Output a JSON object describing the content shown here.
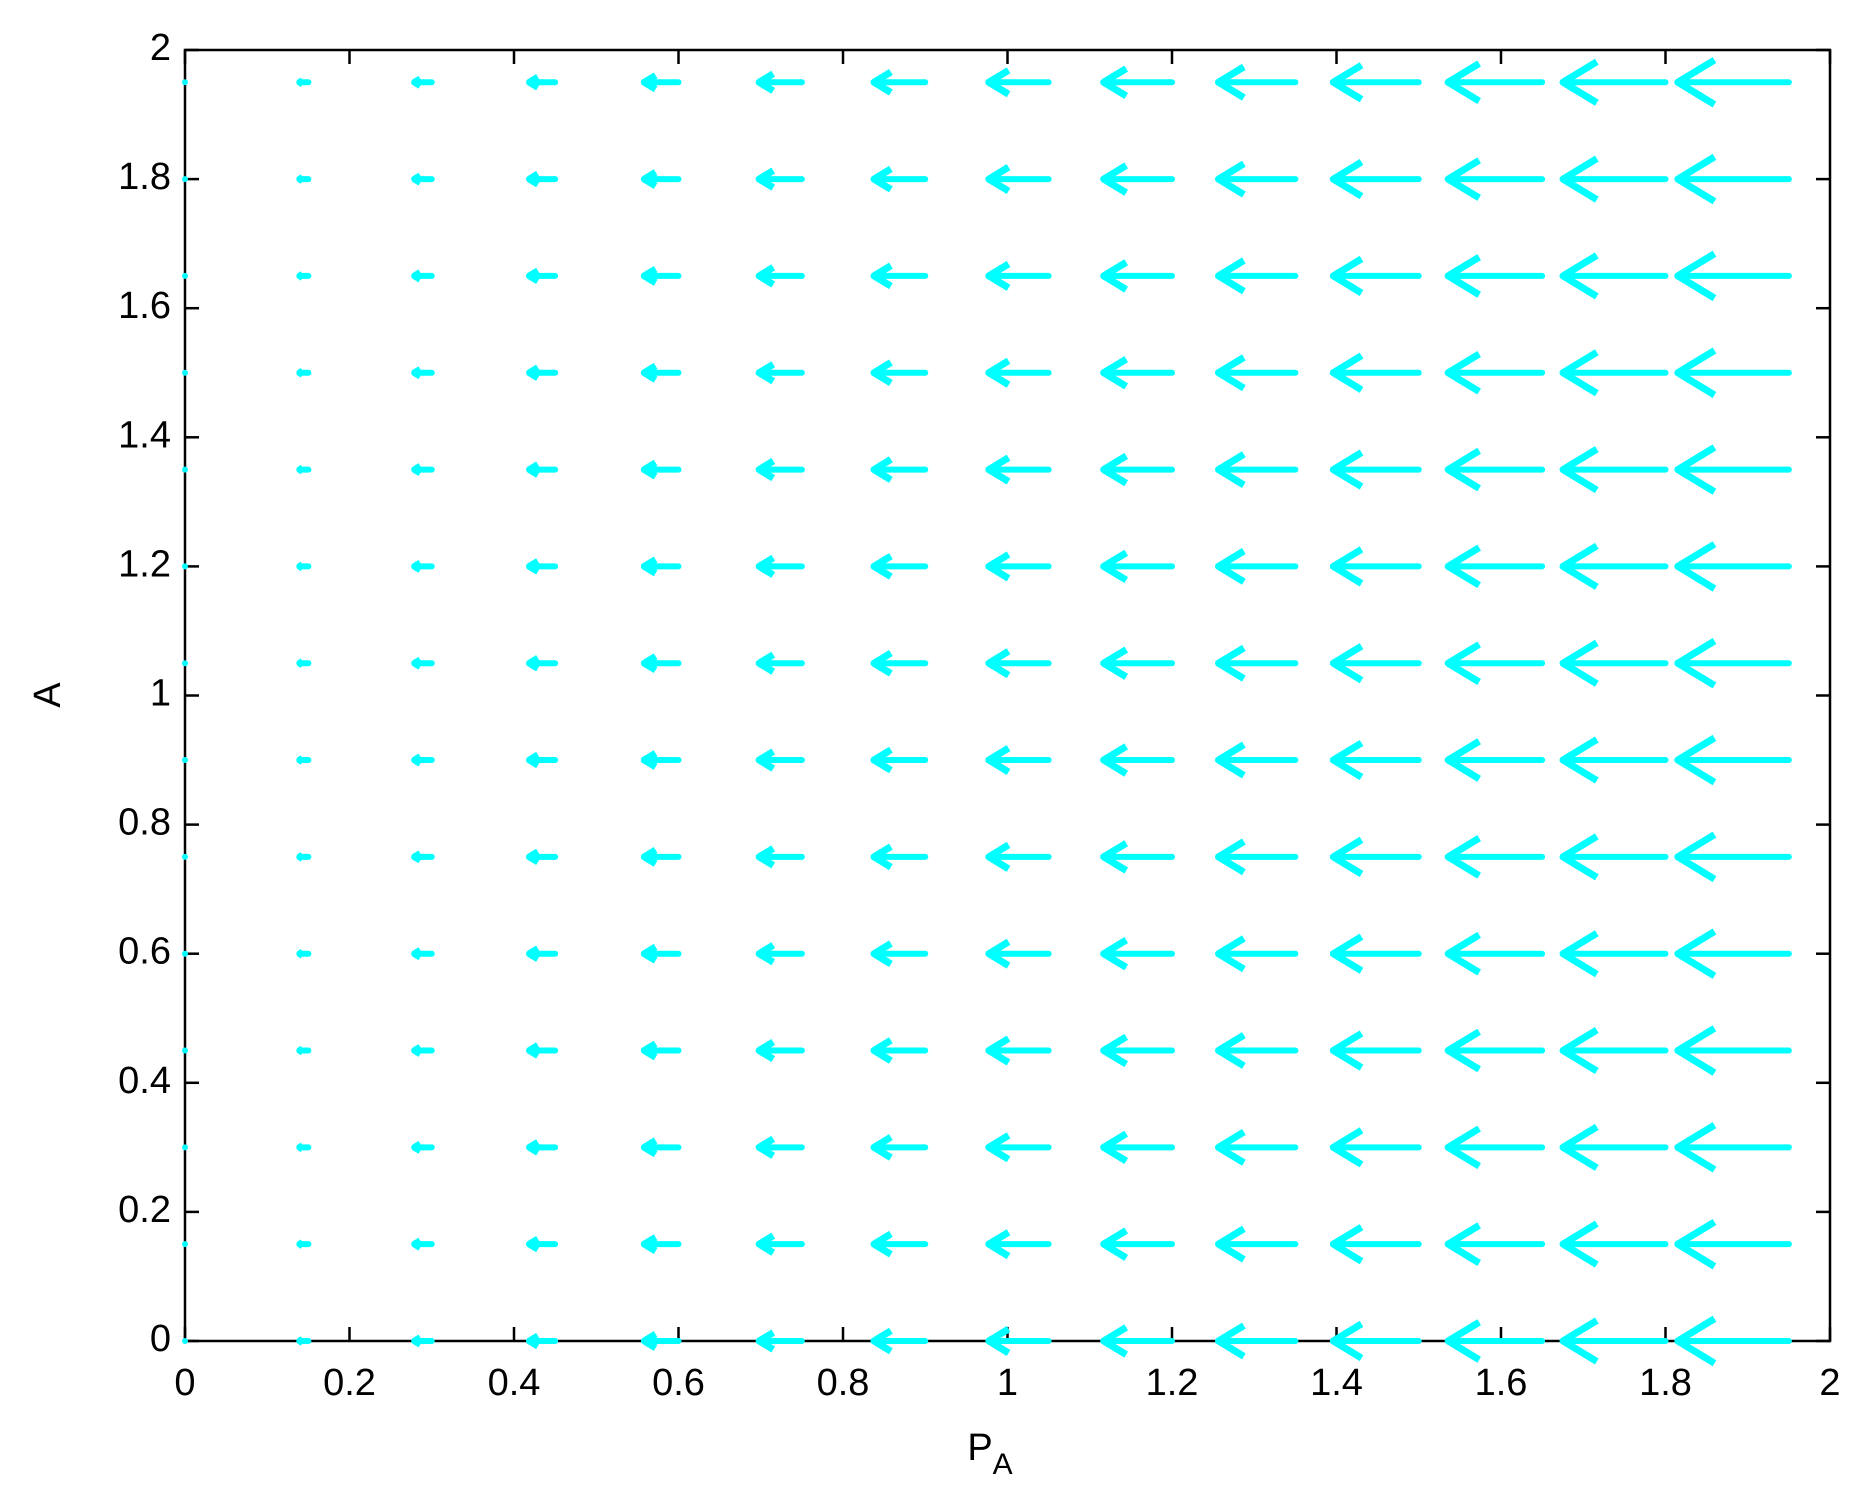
{
  "chart_data": {
    "type": "quiver",
    "xlabel": "P",
    "xlabel_sub": "A",
    "ylabel": "A",
    "x": [
      0,
      0.15,
      0.3,
      0.45,
      0.6,
      0.75,
      0.9,
      1.05,
      1.2,
      1.35,
      1.5,
      1.65,
      1.8,
      1.95
    ],
    "y": [
      0,
      0.15,
      0.3,
      0.45,
      0.6,
      0.75,
      0.9,
      1.05,
      1.2,
      1.35,
      1.5,
      1.65,
      1.8,
      1.95
    ],
    "u": [
      0,
      -0.15,
      -0.3,
      -0.45,
      -0.6,
      -0.75,
      -0.9,
      -1.05,
      -1.2,
      -1.35,
      -1.5,
      -1.65,
      -1.8,
      -1.95
    ],
    "v": [
      0,
      0,
      0,
      0,
      0,
      0,
      0,
      0,
      0,
      0,
      0,
      0,
      0,
      0
    ],
    "color": "#00ffff",
    "xlim": [
      0,
      2
    ],
    "ylim": [
      0,
      2
    ],
    "xticks": [
      0,
      0.2,
      0.4,
      0.6,
      0.8,
      1,
      1.2,
      1.4,
      1.6,
      1.8,
      2
    ],
    "yticks": [
      0,
      0.2,
      0.4,
      0.6,
      0.8,
      1,
      1.2,
      1.4,
      1.6,
      1.8,
      2
    ]
  }
}
